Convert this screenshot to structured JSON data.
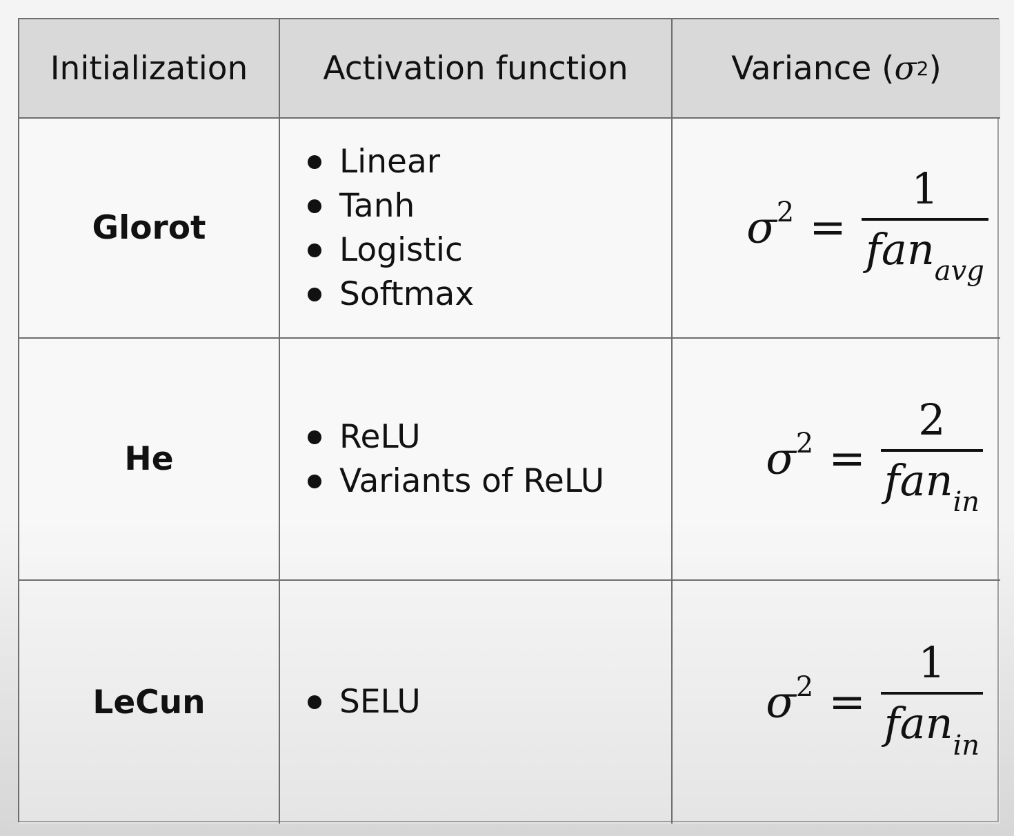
{
  "table": {
    "headers": {
      "initialization": "Initialization",
      "activation": "Activation function",
      "variance_prefix": "Variance (",
      "variance_symbol": "σ",
      "variance_exp": "2",
      "variance_suffix": ")"
    },
    "rows": [
      {
        "name": "Glorot",
        "activations": [
          "Linear",
          "Tanh",
          "Logistic",
          "Softmax"
        ],
        "formula": {
          "lhs": "σ",
          "exp": "2",
          "eq": "=",
          "numerator": "1",
          "denominator": "fan",
          "subscript": "avg"
        }
      },
      {
        "name": "He",
        "activations": [
          "ReLU",
          "Variants of ReLU"
        ],
        "formula": {
          "lhs": "σ",
          "exp": "2",
          "eq": "=",
          "numerator": "2",
          "denominator": "fan",
          "subscript": "in"
        }
      },
      {
        "name": "LeCun",
        "activations": [
          "SELU"
        ],
        "formula": {
          "lhs": "σ",
          "exp": "2",
          "eq": "=",
          "numerator": "1",
          "denominator": "fan",
          "subscript": "in"
        }
      }
    ]
  }
}
